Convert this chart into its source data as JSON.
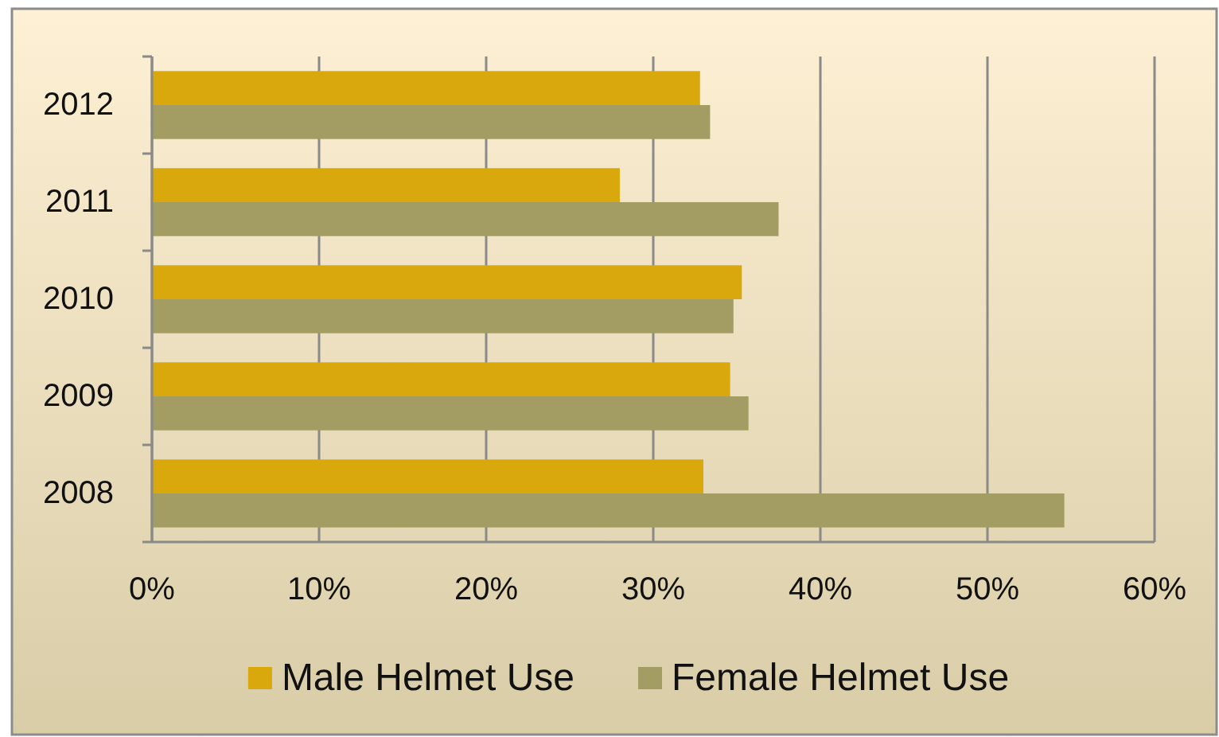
{
  "chart_data": {
    "type": "bar",
    "orientation": "horizontal",
    "categories": [
      "2012",
      "2011",
      "2010",
      "2009",
      "2008"
    ],
    "series": [
      {
        "name": "Male Helmet Use",
        "color": "#d9a80c",
        "values": [
          32.8,
          28.0,
          35.3,
          34.6,
          33.0
        ]
      },
      {
        "name": "Female Helmet Use",
        "color": "#a39d63",
        "values": [
          33.4,
          37.5,
          34.8,
          35.7,
          54.6
        ]
      }
    ],
    "xlim": [
      0,
      60
    ],
    "xticks": [
      {
        "value": 0,
        "label": "0%"
      },
      {
        "value": 10,
        "label": "10%"
      },
      {
        "value": 20,
        "label": "20%"
      },
      {
        "value": 30,
        "label": "30%"
      },
      {
        "value": 40,
        "label": "40%"
      },
      {
        "value": 50,
        "label": "50%"
      },
      {
        "value": 60,
        "label": "60%"
      }
    ],
    "grid": "x",
    "legend": "bottom"
  }
}
